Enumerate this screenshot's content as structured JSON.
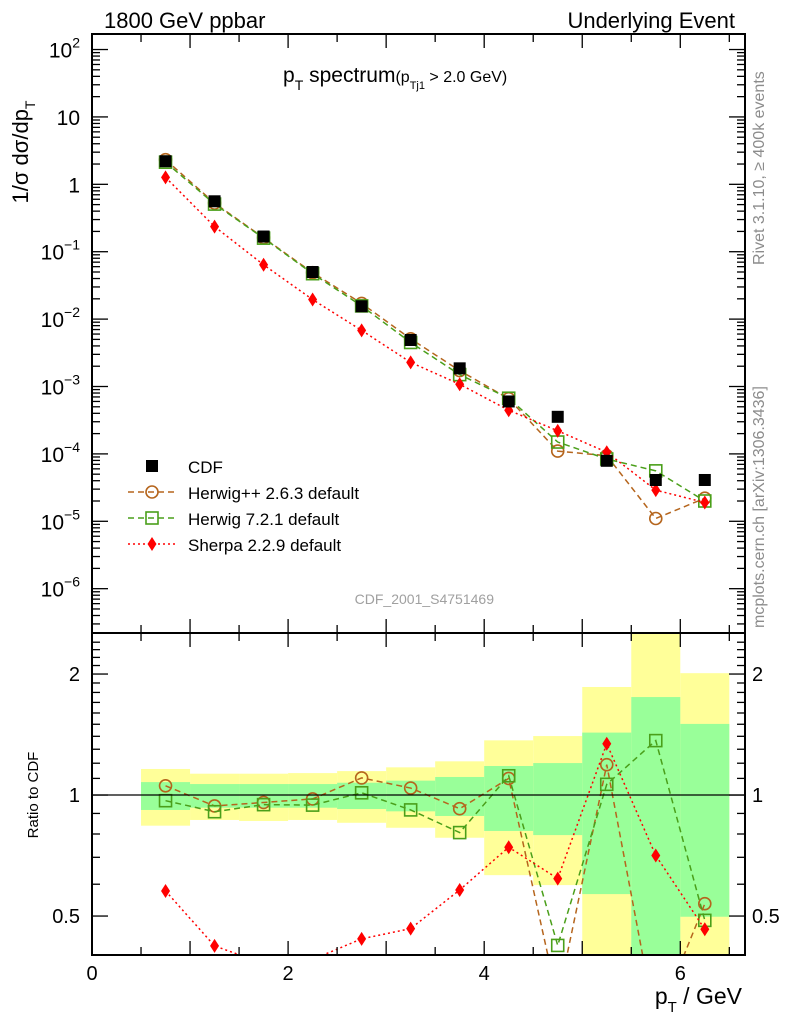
{
  "chart_data": [
    {
      "type": "scatter",
      "panel": "main",
      "title": "p_T spectrum",
      "title_main": "p",
      "title_main_sub": "T",
      "title_rest": " spectrum",
      "title_cut_pre": "(p",
      "title_cut_sub": "Tj1",
      "title_cut_post": " > 2.0 GeV)",
      "top_left_label": "1800 GeV ppbar",
      "top_right_label": "Underlying Event",
      "ylabel": "1/σ dσ/dp",
      "ylabel_sub": "T",
      "yscale": "log",
      "ylim": [
        2.2e-07,
        170
      ],
      "xlim": [
        0,
        6.66
      ],
      "ytick_labels": [
        {
          "value": 100,
          "base": "10",
          "exp": "2"
        },
        {
          "value": 10,
          "base": "10",
          "exp": ""
        },
        {
          "value": 1,
          "base": "1",
          "exp": ""
        },
        {
          "value": 0.1,
          "base": "10",
          "exp": "−1"
        },
        {
          "value": 0.01,
          "base": "10",
          "exp": "−2"
        },
        {
          "value": 0.001,
          "base": "10",
          "exp": "−3"
        },
        {
          "value": 0.0001,
          "base": "10",
          "exp": "−4"
        },
        {
          "value": 1e-05,
          "base": "10",
          "exp": "−5"
        },
        {
          "value": 1e-06,
          "base": "10",
          "exp": "−6"
        }
      ],
      "analysis_label": "CDF_2001_S4751469",
      "legend_position": "bottom-left",
      "x": [
        0.75,
        1.25,
        1.75,
        2.25,
        2.75,
        3.25,
        3.75,
        4.25,
        4.75,
        5.25,
        5.75,
        6.25
      ],
      "series": [
        {
          "name": "CDF",
          "marker": "filled-square",
          "color": "#000000",
          "line": "none",
          "values": [
            2.2,
            0.56,
            0.168,
            0.05,
            0.0155,
            0.0049,
            0.00186,
            0.0006,
            0.000355,
            7.9e-05,
            4.1e-05,
            4.1e-05
          ]
        },
        {
          "name": "Herwig++ 2.6.3 default",
          "marker": "open-circle",
          "color": "#b5651d",
          "line": "dashed",
          "values": [
            2.32,
            0.526,
            0.161,
            0.0489,
            0.0171,
            0.0051,
            0.00172,
            0.00066,
            0.00011,
            9.4e-05,
            1.1e-05,
            2.2e-05
          ]
        },
        {
          "name": "Herwig 7.2.1 default",
          "marker": "open-square",
          "color": "#4a9f1a",
          "line": "dashed",
          "values": [
            2.13,
            0.509,
            0.159,
            0.0472,
            0.0157,
            0.0045,
            0.0015,
            0.00067,
            0.00015,
            8.4e-05,
            5.6e-05,
            2e-05
          ]
        },
        {
          "name": "Sherpa 2.2.9 default",
          "marker": "filled-diamond",
          "color": "#ff0000",
          "line": "dotted",
          "values": [
            1.27,
            0.236,
            0.064,
            0.0195,
            0.0068,
            0.00228,
            0.00108,
            0.000445,
            0.00022,
            0.000106,
            2.9e-05,
            1.9e-05
          ]
        }
      ]
    },
    {
      "type": "scatter",
      "panel": "ratio",
      "ylabel": "Ratio to CDF",
      "xlabel_main": "p",
      "xlabel_sub": "T",
      "xlabel_rest": " / GeV",
      "yscale": "log",
      "ylim": [
        0.4,
        2.53
      ],
      "yticks": [
        {
          "value": 0.5,
          "label": "0.5"
        },
        {
          "value": 1,
          "label": "1"
        },
        {
          "value": 2,
          "label": "2"
        }
      ],
      "xticks": [
        {
          "value": 0,
          "label": "0"
        },
        {
          "value": 2,
          "label": "2"
        },
        {
          "value": 4,
          "label": "4"
        },
        {
          "value": 6,
          "label": "6"
        }
      ],
      "bin_edges": [
        0.5,
        1.0,
        1.5,
        2.0,
        2.5,
        3.0,
        3.5,
        4.0,
        4.5,
        5.0,
        5.5,
        6.0,
        6.5
      ],
      "band_outer_color": "#ffff99",
      "band_inner_color": "#99ff99",
      "band_outer": {
        "lo": [
          0.839,
          0.867,
          0.862,
          0.867,
          0.853,
          0.829,
          0.783,
          0.632,
          0.597,
          0.3,
          0.3,
          0.3
        ],
        "hi": [
          1.161,
          1.13,
          1.13,
          1.134,
          1.147,
          1.172,
          1.213,
          1.368,
          1.402,
          1.857,
          3.0,
          2.01
        ]
      },
      "band_inner": {
        "lo": [
          0.918,
          0.93,
          0.93,
          0.93,
          0.923,
          0.911,
          0.887,
          0.814,
          0.795,
          0.567,
          0.3,
          0.498
        ],
        "hi": [
          1.077,
          1.065,
          1.065,
          1.065,
          1.073,
          1.086,
          1.109,
          1.181,
          1.201,
          1.43,
          1.753,
          1.503
        ]
      }
    }
  ],
  "side_labels": {
    "rivet": "Rivet 3.1.10, ≥ 400k events",
    "mcplots": "mcplots.cern.ch [arXiv:1306.3436]"
  }
}
